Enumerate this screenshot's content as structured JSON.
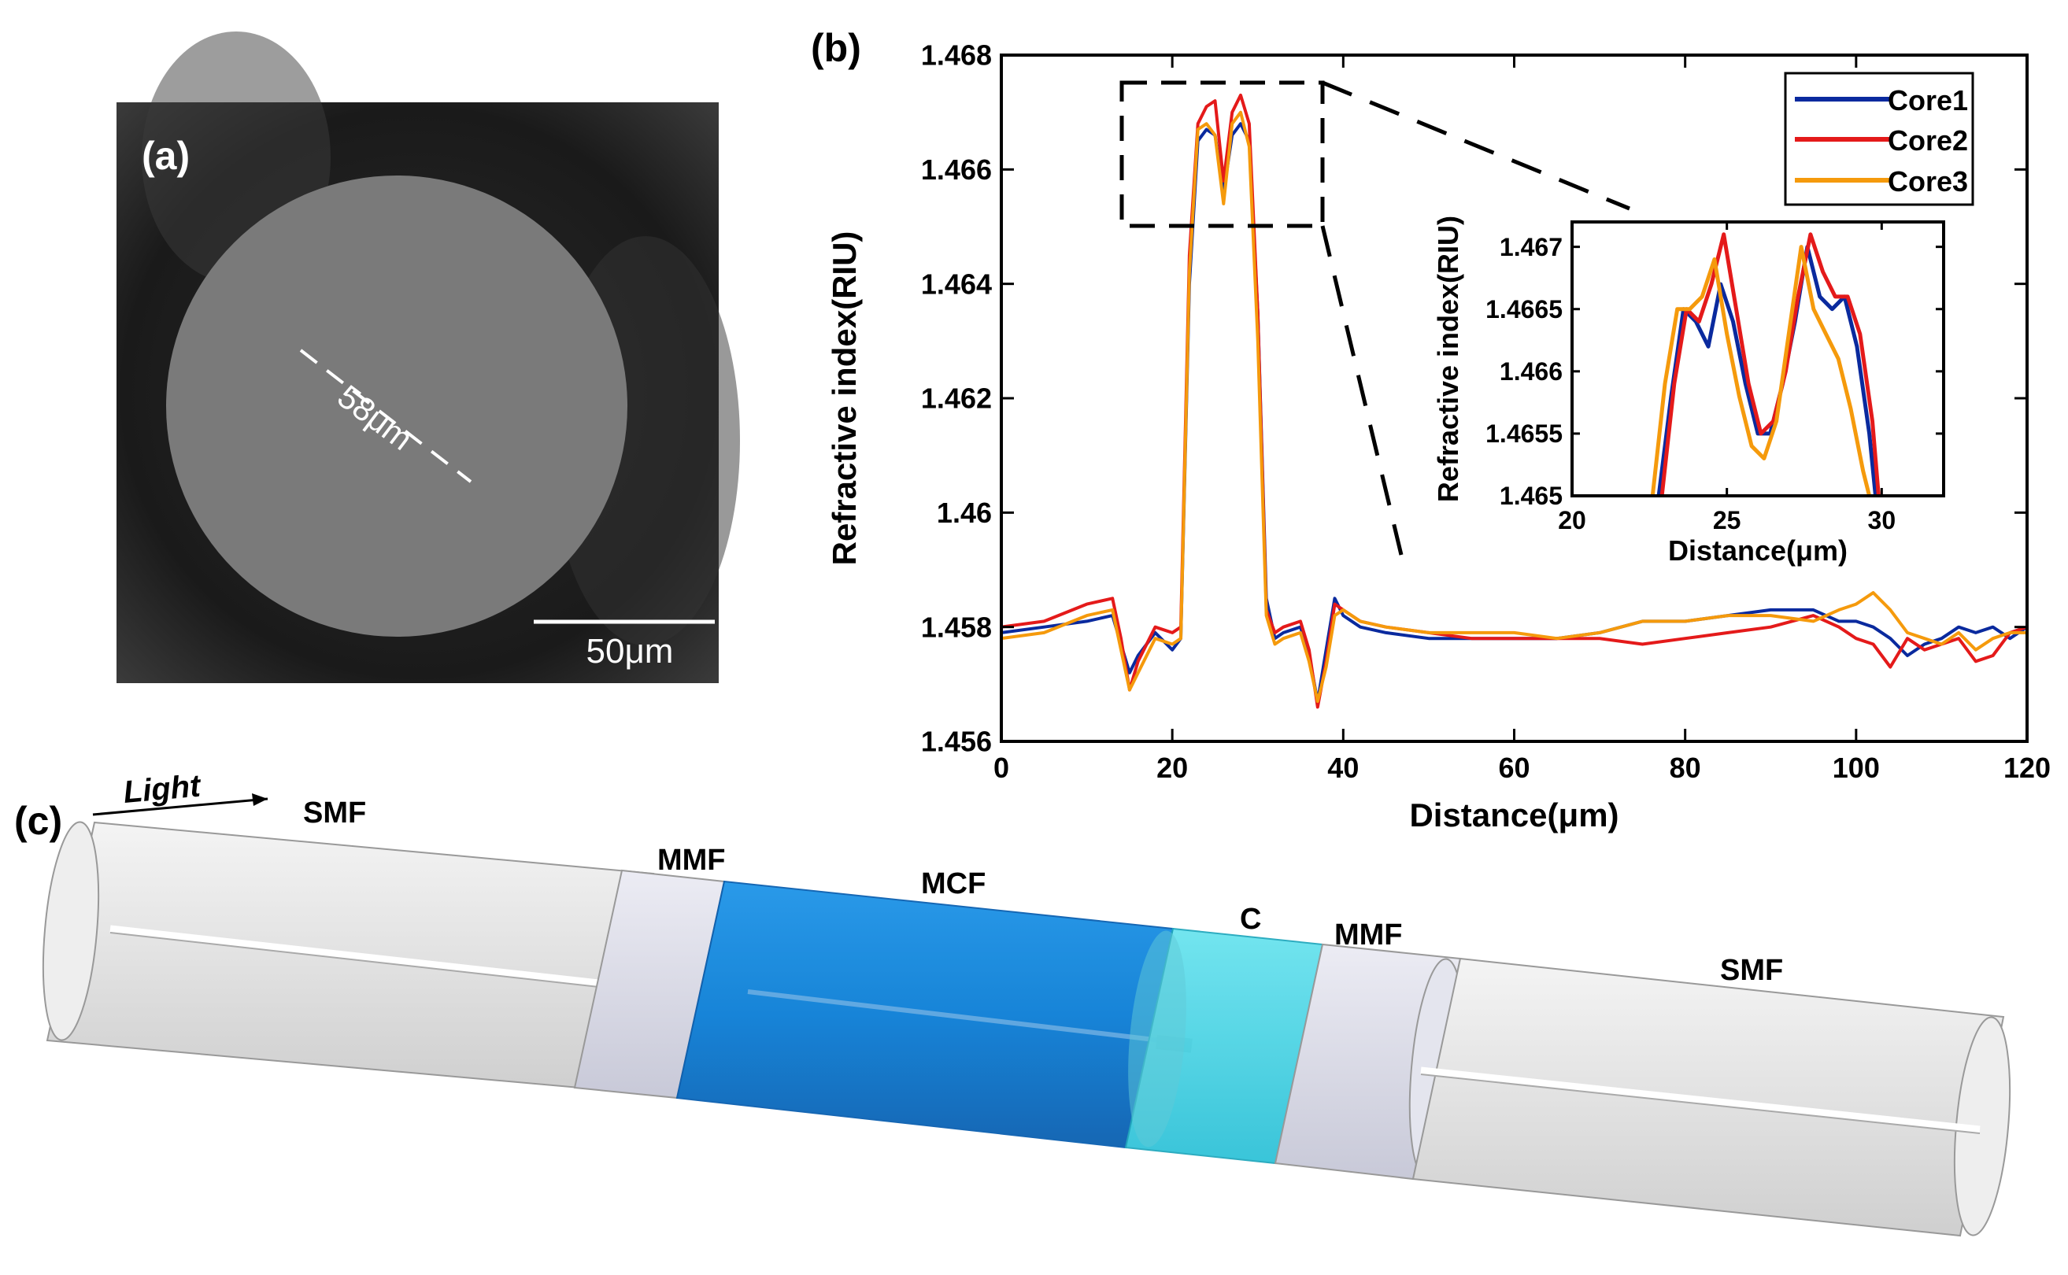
{
  "panels": {
    "a": {
      "label": "(a)",
      "diameter_label": "58μm",
      "scale_bar_label": "50μm"
    },
    "b": {
      "label": "(b)"
    },
    "c": {
      "label": "(c)",
      "light_label": "Light",
      "segments": [
        "SMF",
        "MMF",
        "MCF",
        "C",
        "MMF",
        "SMF"
      ]
    }
  },
  "colors": {
    "core1": "#0a2a9e",
    "core2": "#e41a1a",
    "core3": "#f59a0c",
    "mcf": "#0b7ed6",
    "c_segment": "#3fd6e6",
    "mmf": "#dcdde8",
    "smf": "#e6e6e6"
  },
  "chart_data": [
    {
      "type": "line",
      "name": "main",
      "xlabel": "Distance(μm)",
      "ylabel": "Refractive index(RIU)",
      "xlim": [
        0,
        120
      ],
      "ylim": [
        1.456,
        1.468
      ],
      "xticks": [
        0,
        20,
        40,
        60,
        80,
        100,
        120
      ],
      "xtick_labels": [
        "0",
        "20",
        "40",
        "60",
        "80",
        "100",
        "120"
      ],
      "yticks": [
        1.456,
        1.458,
        1.46,
        1.462,
        1.464,
        1.466,
        1.468
      ],
      "ytick_labels": [
        "1.456",
        "1.458",
        "1.46",
        "1.462",
        "1.464",
        "1.466",
        "1.468"
      ],
      "legend": {
        "position": "top-right",
        "entries": [
          "Core1",
          "Core2",
          "Core3"
        ]
      },
      "series": [
        {
          "name": "Core1",
          "x": [
            0,
            5,
            10,
            13,
            14,
            15,
            16,
            18,
            20,
            21,
            22,
            23,
            24,
            25,
            26,
            27,
            28,
            29,
            30,
            31,
            32,
            33,
            35,
            36,
            37,
            38,
            39,
            40,
            42,
            45,
            50,
            55,
            60,
            65,
            70,
            75,
            80,
            85,
            90,
            95,
            98,
            100,
            102,
            104,
            106,
            108,
            110,
            112,
            114,
            116,
            118,
            120
          ],
          "y": [
            1.4579,
            1.458,
            1.4581,
            1.4582,
            1.4577,
            1.4572,
            1.4575,
            1.4579,
            1.4576,
            1.4578,
            1.464,
            1.4665,
            1.4667,
            1.4666,
            1.4656,
            1.4666,
            1.4668,
            1.4665,
            1.4635,
            1.4585,
            1.4578,
            1.4579,
            1.458,
            1.4575,
            1.4567,
            1.4576,
            1.4585,
            1.4582,
            1.458,
            1.4579,
            1.4578,
            1.4578,
            1.4578,
            1.4578,
            1.4579,
            1.4581,
            1.4581,
            1.4582,
            1.4583,
            1.4583,
            1.4581,
            1.4581,
            1.458,
            1.4578,
            1.4575,
            1.4577,
            1.4578,
            1.458,
            1.4579,
            1.458,
            1.4578,
            1.458
          ]
        },
        {
          "name": "Core2",
          "x": [
            0,
            5,
            10,
            13,
            14,
            15,
            16,
            18,
            20,
            21,
            22,
            23,
            24,
            25,
            26,
            27,
            28,
            29,
            30,
            31,
            32,
            33,
            35,
            36,
            37,
            38,
            39,
            40,
            42,
            45,
            50,
            55,
            60,
            65,
            70,
            75,
            80,
            85,
            90,
            95,
            98,
            100,
            102,
            104,
            106,
            108,
            110,
            112,
            114,
            116,
            118,
            120
          ],
          "y": [
            1.458,
            1.4581,
            1.4584,
            1.4585,
            1.4578,
            1.4569,
            1.4574,
            1.458,
            1.4579,
            1.458,
            1.4645,
            1.4668,
            1.4671,
            1.4672,
            1.4658,
            1.467,
            1.4673,
            1.4668,
            1.4635,
            1.4583,
            1.4579,
            1.458,
            1.4581,
            1.4576,
            1.4566,
            1.4574,
            1.4584,
            1.4583,
            1.4581,
            1.458,
            1.4579,
            1.4578,
            1.4578,
            1.4578,
            1.4578,
            1.4577,
            1.4578,
            1.4579,
            1.458,
            1.4582,
            1.458,
            1.4578,
            1.4577,
            1.4573,
            1.4578,
            1.4576,
            1.4577,
            1.4578,
            1.4574,
            1.4575,
            1.4579,
            1.458
          ]
        },
        {
          "name": "Core3",
          "x": [
            0,
            5,
            10,
            13,
            14,
            15,
            16,
            18,
            20,
            21,
            22,
            23,
            24,
            25,
            26,
            27,
            28,
            29,
            30,
            31,
            32,
            33,
            35,
            36,
            37,
            38,
            39,
            40,
            42,
            45,
            50,
            55,
            60,
            65,
            70,
            75,
            80,
            85,
            90,
            95,
            98,
            100,
            102,
            104,
            106,
            108,
            110,
            112,
            114,
            116,
            118,
            120
          ],
          "y": [
            1.4578,
            1.4579,
            1.4582,
            1.4583,
            1.4576,
            1.4569,
            1.4572,
            1.4578,
            1.4577,
            1.4578,
            1.4642,
            1.4667,
            1.4668,
            1.4666,
            1.4654,
            1.4668,
            1.467,
            1.4664,
            1.463,
            1.4582,
            1.4577,
            1.4578,
            1.4579,
            1.4574,
            1.4567,
            1.4573,
            1.4582,
            1.4583,
            1.4581,
            1.458,
            1.4579,
            1.4579,
            1.4579,
            1.4578,
            1.4579,
            1.4581,
            1.4581,
            1.4582,
            1.4582,
            1.4581,
            1.4583,
            1.4584,
            1.4586,
            1.4583,
            1.4579,
            1.4578,
            1.4577,
            1.4579,
            1.4576,
            1.4578,
            1.4579,
            1.4579
          ]
        }
      ]
    },
    {
      "type": "line",
      "name": "inset",
      "xlabel": "Distance(μm)",
      "ylabel": "Refractive index(RIU)",
      "xlim": [
        20,
        32
      ],
      "ylim": [
        1.465,
        1.4672
      ],
      "xticks": [
        20,
        25,
        30
      ],
      "xtick_labels": [
        "20",
        "25",
        "30"
      ],
      "yticks": [
        1.465,
        1.4655,
        1.466,
        1.4665,
        1.467
      ],
      "ytick_labels": [
        "1.465",
        "1.4655",
        "1.466",
        "1.4665",
        "1.467"
      ],
      "series": [
        {
          "name": "Core1",
          "x": [
            22.8,
            23.2,
            23.6,
            24.0,
            24.4,
            24.8,
            25.2,
            25.6,
            26.0,
            26.4,
            26.8,
            27.2,
            27.6,
            28.0,
            28.4,
            28.8,
            29.2,
            29.6,
            29.8
          ],
          "y": [
            1.465,
            1.4658,
            1.4665,
            1.4664,
            1.4662,
            1.4667,
            1.4664,
            1.4659,
            1.4655,
            1.4655,
            1.4659,
            1.4664,
            1.467,
            1.4666,
            1.4665,
            1.4666,
            1.4662,
            1.4655,
            1.465
          ]
        },
        {
          "name": "Core2",
          "x": [
            22.9,
            23.3,
            23.7,
            24.1,
            24.5,
            24.9,
            25.3,
            25.7,
            26.1,
            26.5,
            26.9,
            27.3,
            27.7,
            28.1,
            28.5,
            28.9,
            29.3,
            29.7,
            29.9
          ],
          "y": [
            1.465,
            1.4659,
            1.4665,
            1.4664,
            1.4667,
            1.4671,
            1.4665,
            1.4659,
            1.4655,
            1.4656,
            1.466,
            1.4666,
            1.4671,
            1.4668,
            1.4666,
            1.4666,
            1.4663,
            1.4656,
            1.465
          ]
        },
        {
          "name": "Core3",
          "x": [
            22.6,
            23.0,
            23.4,
            23.8,
            24.2,
            24.6,
            25.0,
            25.4,
            25.8,
            26.2,
            26.6,
            27.0,
            27.4,
            27.8,
            28.2,
            28.6,
            29.0,
            29.4,
            29.6
          ],
          "y": [
            1.465,
            1.4659,
            1.4665,
            1.4665,
            1.4666,
            1.4669,
            1.4663,
            1.4658,
            1.4654,
            1.4653,
            1.4656,
            1.4663,
            1.467,
            1.4665,
            1.4663,
            1.4661,
            1.4657,
            1.4652,
            1.465
          ]
        }
      ]
    }
  ]
}
